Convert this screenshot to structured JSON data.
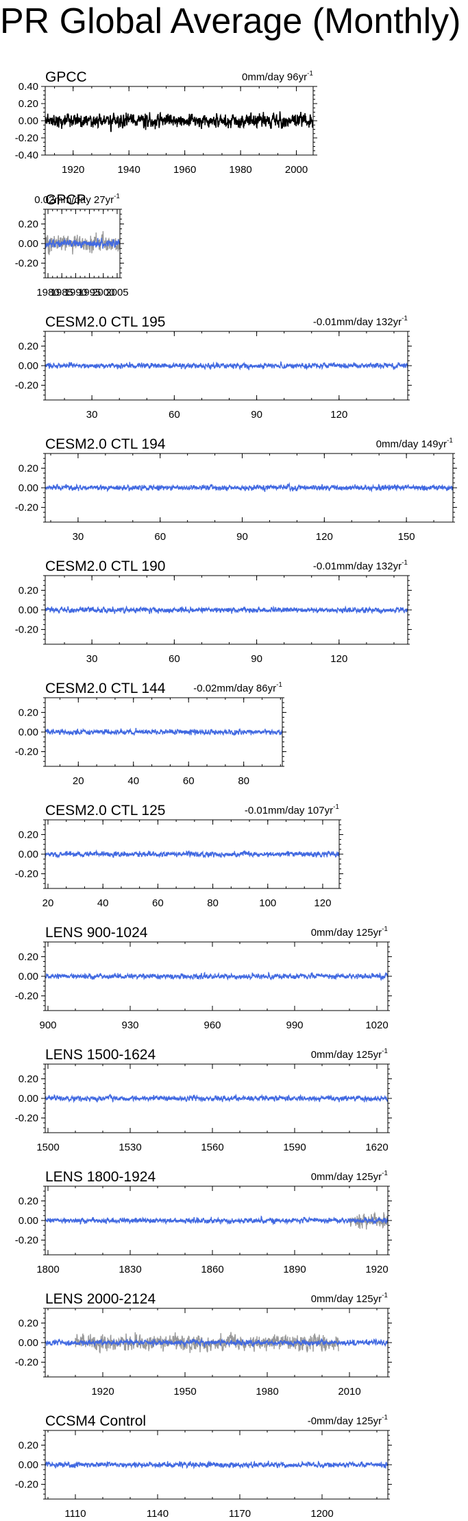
{
  "page": {
    "title": "PR Global Average (Monthly)"
  },
  "colors": {
    "obs": "#000000",
    "model": "#4169e1",
    "obs_overlay": "#999999"
  },
  "chart_data": [
    {
      "type": "line",
      "title": "GPCC",
      "trend_text": "0mm/day 96yr",
      "trend_exp": "-1",
      "xlim": [
        1910,
        2006
      ],
      "ylim": [
        -0.4,
        0.4
      ],
      "xticks": [
        1920,
        1940,
        1960,
        1980,
        2000
      ],
      "xtick_labels": [
        "1920",
        "1940",
        "1960",
        "1980",
        "2000"
      ],
      "yticks": [
        0.4,
        0.2,
        0.0,
        -0.2,
        -0.4
      ],
      "ytick_labels": [
        "0.40",
        "0.20",
        "0.00",
        "-0.20",
        "-0.40"
      ],
      "grid": false,
      "series": [
        {
          "style": "obs",
          "start": 1910,
          "amplitude": 0.09,
          "seed": 11
        }
      ]
    },
    {
      "type": "line",
      "title": "GPCP",
      "trend_text": "0.02mm/day 27yr",
      "trend_exp": "-1",
      "xlim": [
        1979,
        2006
      ],
      "ylim": [
        -0.35,
        0.35
      ],
      "xticks": [
        1980,
        1985,
        1990,
        1995,
        2000,
        2005
      ],
      "xtick_labels": [
        "1980",
        "1985",
        "1990",
        "1995",
        "2000",
        "2005"
      ],
      "yticks": [
        0.2,
        0.0,
        -0.2
      ],
      "ytick_labels": [
        "0.20",
        "0.00",
        "-0.20"
      ],
      "grid": false,
      "series": [
        {
          "style": "obs_overlay",
          "start": 1979,
          "amplitude": 0.1,
          "seed": 21
        },
        {
          "style": "model",
          "start": 1979,
          "amplitude": 0.045,
          "seed": 22
        }
      ]
    },
    {
      "type": "line",
      "title": "CESM2.0 CTL 195",
      "trend_text": "-0.01mm/day 132yr",
      "trend_exp": "-1",
      "xlim": [
        13,
        145
      ],
      "ylim": [
        -0.35,
        0.35
      ],
      "xticks": [
        30,
        60,
        90,
        120
      ],
      "xtick_labels": [
        "30",
        "60",
        "90",
        "120"
      ],
      "yticks": [
        0.2,
        0.0,
        -0.2
      ],
      "ytick_labels": [
        "0.20",
        "0.00",
        "-0.20"
      ],
      "grid": false,
      "series": [
        {
          "style": "model",
          "start": 13,
          "amplitude": 0.03,
          "seed": 31
        }
      ]
    },
    {
      "type": "line",
      "title": "CESM2.0 CTL 194",
      "trend_text": "0mm/day 149yr",
      "trend_exp": "-1",
      "xlim": [
        18,
        167
      ],
      "ylim": [
        -0.35,
        0.35
      ],
      "xticks": [
        30,
        60,
        90,
        120,
        150
      ],
      "xtick_labels": [
        "30",
        "60",
        "90",
        "120",
        "150"
      ],
      "yticks": [
        0.2,
        0.0,
        -0.2
      ],
      "ytick_labels": [
        "0.20",
        "0.00",
        "-0.20"
      ],
      "grid": false,
      "series": [
        {
          "style": "model",
          "start": 18,
          "amplitude": 0.03,
          "seed": 41
        }
      ]
    },
    {
      "type": "line",
      "title": "CESM2.0 CTL 190",
      "trend_text": "-0.01mm/day 132yr",
      "trend_exp": "-1",
      "xlim": [
        13,
        145
      ],
      "ylim": [
        -0.35,
        0.35
      ],
      "xticks": [
        30,
        60,
        90,
        120
      ],
      "xtick_labels": [
        "30",
        "60",
        "90",
        "120"
      ],
      "yticks": [
        0.2,
        0.0,
        -0.2
      ],
      "ytick_labels": [
        "0.20",
        "0.00",
        "-0.20"
      ],
      "grid": false,
      "series": [
        {
          "style": "model",
          "start": 13,
          "amplitude": 0.03,
          "seed": 51
        }
      ]
    },
    {
      "type": "line",
      "title": "CESM2.0 CTL 144",
      "trend_text": "-0.02mm/day 86yr",
      "trend_exp": "-1",
      "xlim": [
        8,
        94
      ],
      "ylim": [
        -0.35,
        0.35
      ],
      "xticks": [
        20,
        40,
        60,
        80
      ],
      "xtick_labels": [
        "20",
        "40",
        "60",
        "80"
      ],
      "yticks": [
        0.2,
        0.0,
        -0.2
      ],
      "ytick_labels": [
        "0.20",
        "0.00",
        "-0.20"
      ],
      "grid": false,
      "series": [
        {
          "style": "model",
          "start": 8,
          "amplitude": 0.03,
          "seed": 61
        }
      ]
    },
    {
      "type": "line",
      "title": "CESM2.0 CTL 125",
      "trend_text": "-0.01mm/day 107yr",
      "trend_exp": "-1",
      "xlim": [
        19,
        126
      ],
      "ylim": [
        -0.35,
        0.35
      ],
      "xticks": [
        20,
        40,
        60,
        80,
        100,
        120
      ],
      "xtick_labels": [
        "20",
        "40",
        "60",
        "80",
        "100",
        "120"
      ],
      "yticks": [
        0.2,
        0.0,
        -0.2
      ],
      "ytick_labels": [
        "0.20",
        "0.00",
        "-0.20"
      ],
      "grid": false,
      "series": [
        {
          "style": "model",
          "start": 19,
          "amplitude": 0.03,
          "seed": 71
        }
      ]
    },
    {
      "type": "line",
      "title": "LENS 900-1024",
      "trend_text": "0mm/day 125yr",
      "trend_exp": "-1",
      "xlim": [
        899,
        1024
      ],
      "ylim": [
        -0.35,
        0.35
      ],
      "xticks": [
        900,
        930,
        960,
        990,
        1020
      ],
      "xtick_labels": [
        "900",
        "930",
        "960",
        "990",
        "1020"
      ],
      "yticks": [
        0.2,
        0.0,
        -0.2
      ],
      "ytick_labels": [
        "0.20",
        "0.00",
        "-0.20"
      ],
      "grid": false,
      "series": [
        {
          "style": "model",
          "start": 899,
          "amplitude": 0.03,
          "seed": 81
        }
      ]
    },
    {
      "type": "line",
      "title": "LENS 1500-1624",
      "trend_text": "0mm/day 125yr",
      "trend_exp": "-1",
      "xlim": [
        1499,
        1624
      ],
      "ylim": [
        -0.35,
        0.35
      ],
      "xticks": [
        1500,
        1530,
        1560,
        1590,
        1620
      ],
      "xtick_labels": [
        "1500",
        "1530",
        "1560",
        "1590",
        "1620"
      ],
      "yticks": [
        0.2,
        0.0,
        -0.2
      ],
      "ytick_labels": [
        "0.20",
        "0.00",
        "-0.20"
      ],
      "grid": false,
      "series": [
        {
          "style": "model",
          "start": 1499,
          "amplitude": 0.03,
          "seed": 91
        }
      ]
    },
    {
      "type": "line",
      "title": "LENS 1800-1924",
      "trend_text": "0mm/day 125yr",
      "trend_exp": "-1",
      "xlim": [
        1799,
        1924
      ],
      "ylim": [
        -0.35,
        0.35
      ],
      "xticks": [
        1800,
        1830,
        1860,
        1890,
        1920
      ],
      "xtick_labels": [
        "1800",
        "1830",
        "1860",
        "1890",
        "1920"
      ],
      "yticks": [
        0.2,
        0.0,
        -0.2
      ],
      "ytick_labels": [
        "0.20",
        "0.00",
        "-0.20"
      ],
      "grid": false,
      "series": [
        {
          "style": "obs_overlay",
          "start": 1910,
          "amplitude": 0.09,
          "seed": 101
        },
        {
          "style": "model",
          "start": 1799,
          "amplitude": 0.03,
          "seed": 102
        }
      ]
    },
    {
      "type": "line",
      "title": "LENS 2000-2124",
      "trend_text": "0mm/day 125yr",
      "trend_exp": "-1",
      "xlim": [
        1899,
        2024
      ],
      "ylim": [
        -0.35,
        0.35
      ],
      "xticks": [
        1920,
        1950,
        1980,
        2010
      ],
      "xtick_labels": [
        "1920",
        "1950",
        "1980",
        "2010"
      ],
      "yticks": [
        0.2,
        0.0,
        -0.2
      ],
      "ytick_labels": [
        "0.20",
        "0.00",
        "-0.20"
      ],
      "grid": false,
      "series": [
        {
          "style": "obs_overlay",
          "start": 1910,
          "end": 2006,
          "amplitude": 0.09,
          "seed": 111
        },
        {
          "style": "model",
          "start": 1899,
          "amplitude": 0.03,
          "seed": 112
        }
      ]
    },
    {
      "type": "line",
      "title": "CCSM4 Control",
      "trend_text": "-0mm/day 125yr",
      "trend_exp": "-1",
      "xlim": [
        1099,
        1224
      ],
      "ylim": [
        -0.35,
        0.35
      ],
      "xticks": [
        1110,
        1140,
        1170,
        1200
      ],
      "xtick_labels": [
        "1110",
        "1140",
        "1170",
        "1200"
      ],
      "yticks": [
        0.2,
        0.0,
        -0.2
      ],
      "ytick_labels": [
        "0.20",
        "0.00",
        "-0.20"
      ],
      "grid": false,
      "series": [
        {
          "style": "model",
          "start": 1099,
          "amplitude": 0.03,
          "seed": 121
        }
      ]
    }
  ]
}
